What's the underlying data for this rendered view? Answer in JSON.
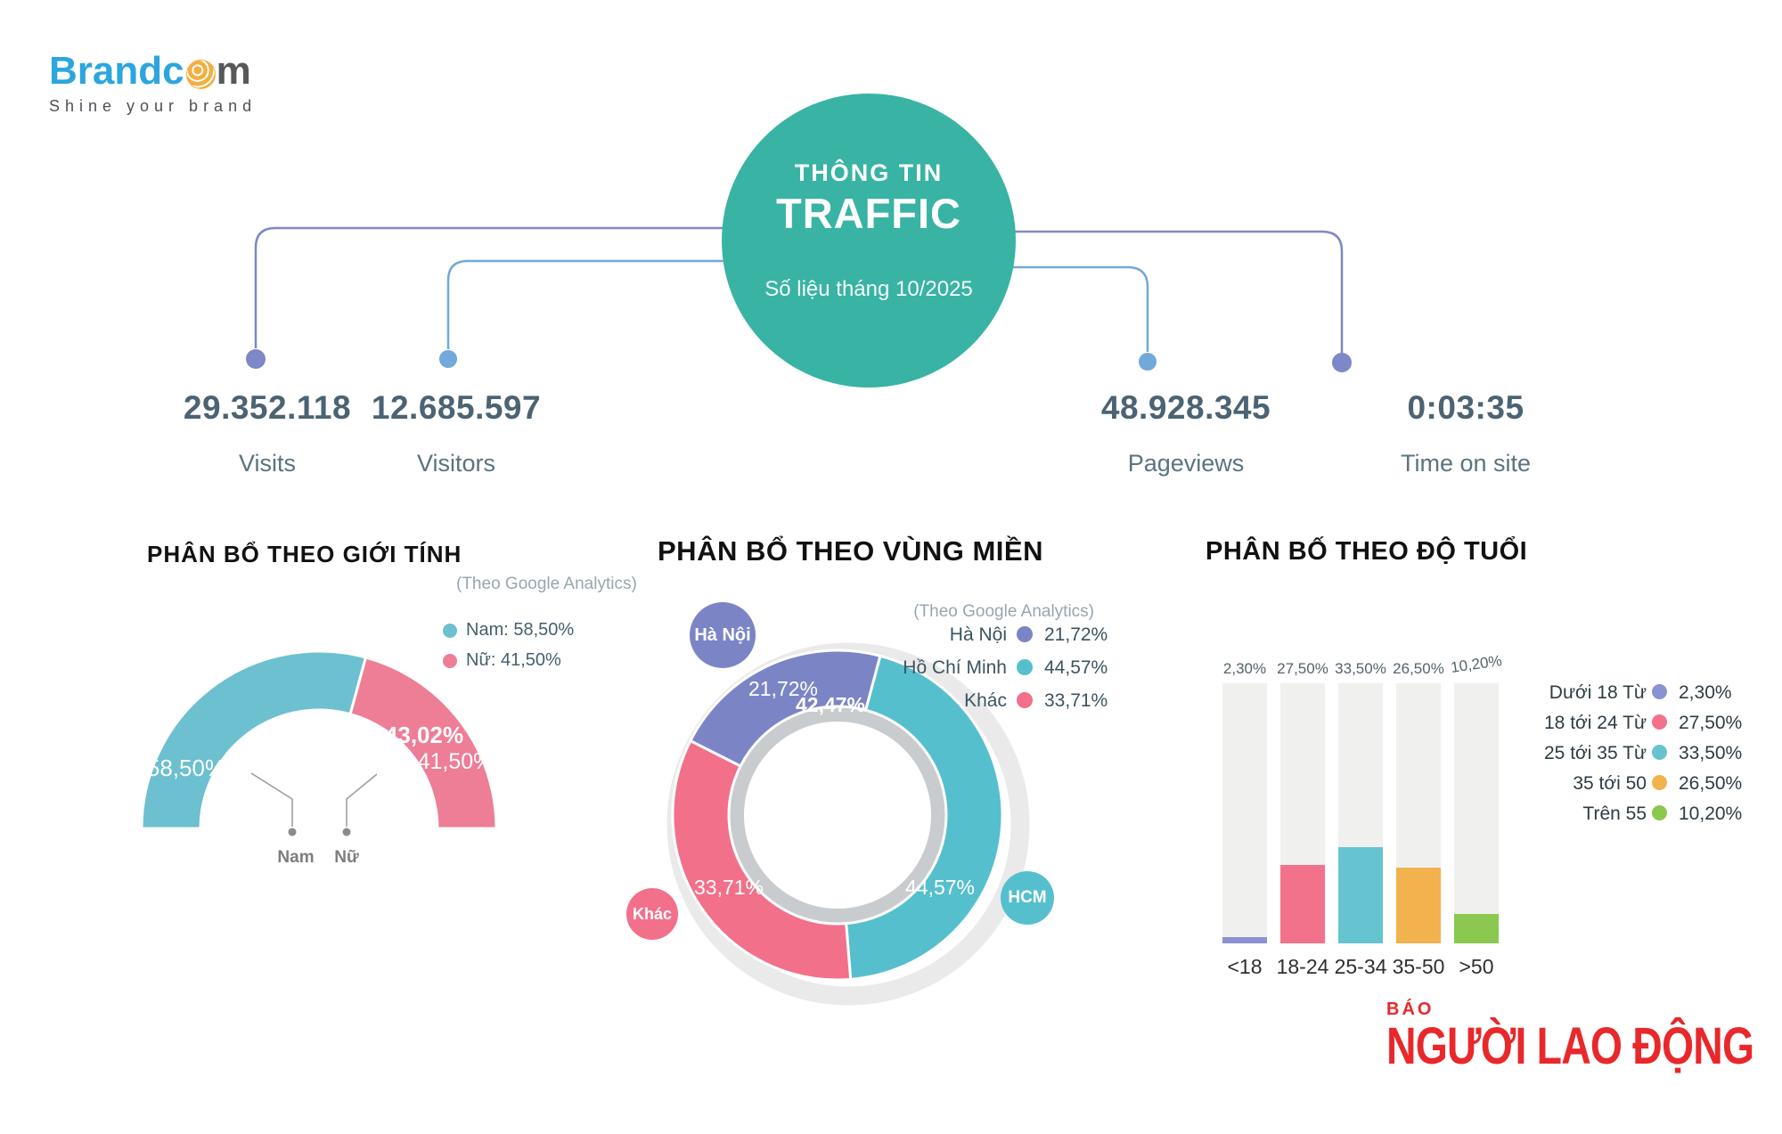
{
  "brand": {
    "text_before_ball": "Brandc",
    "text_after_ball": "m",
    "tagline": "Shine your brand"
  },
  "hero": {
    "line1": "THÔNG TIN",
    "line2": "TRAFFIC",
    "subtitle": "Số liệu tháng 10/2025"
  },
  "stats": [
    {
      "value": "29.352.118",
      "label": "Visits"
    },
    {
      "value": "12.685.597",
      "label": "Visitors"
    },
    {
      "value": "48.928.345",
      "label": "Pageviews"
    },
    {
      "value": "0:03:35",
      "label": "Time on site"
    }
  ],
  "colors": {
    "hero_teal": "#39b3a4",
    "connector_purple": "#7e88c8",
    "connector_blue": "#72a8da",
    "stat_text": "#4b6372",
    "newspaper_red": "#e8282b"
  },
  "chart_data": [
    {
      "type": "pie",
      "subtype": "half-donut-gauge",
      "title": "PHÂN BỔ THEO GIỚI TÍNH",
      "source_note": "(Theo Google Analytics)",
      "segments": [
        {
          "name": "Nam",
          "value": 58.5,
          "display": "58,50%",
          "color": "#6cc0cf"
        },
        {
          "name": "Nữ",
          "value": 41.5,
          "display": "41,50%",
          "secondary_display": "43,02%",
          "color": "#ee7e95"
        }
      ],
      "legend": [
        {
          "label": "Nam: 58,50%",
          "color": "#6cc0cf"
        },
        {
          "label": "Nữ: 41,50%",
          "color": "#ee7e95"
        }
      ],
      "axis_labels": [
        "Nam",
        "Nữ"
      ]
    },
    {
      "type": "pie",
      "subtype": "donut",
      "title": "PHÂN BỔ THEO VÙNG MIỀN",
      "source_note": "(Theo Google Analytics)",
      "segments": [
        {
          "name": "Hồ Chí Minh",
          "value": 44.57,
          "display": "44,57%",
          "color": "#56bfcd",
          "badge": "HCM"
        },
        {
          "name": "Khác",
          "value": 33.71,
          "display": "33,71%",
          "color": "#f2708a",
          "badge": "Khác"
        },
        {
          "name": "Hà Nội",
          "value": 21.72,
          "display": "21,72%",
          "secondary_display": "42,47%",
          "color": "#7b85c6",
          "badge": "Hà Nội"
        }
      ],
      "legend": [
        {
          "label": "Hà Nội",
          "value": "21,72%",
          "color": "#7b85c6"
        },
        {
          "label": "Hồ Chí Minh",
          "value": "44,57%",
          "color": "#56bfcd"
        },
        {
          "label": "Khác",
          "value": "33,71%",
          "color": "#f2708a"
        }
      ]
    },
    {
      "type": "bar",
      "title": "PHÂN BỐ THEO ĐỘ TUỔI",
      "categories": [
        "<18",
        "18-24",
        "25-34",
        "35-50",
        ">50"
      ],
      "values": [
        2.3,
        27.5,
        33.5,
        26.5,
        10.2
      ],
      "value_labels": [
        "2,30%",
        "27,50%",
        "33,50%",
        "26,50%",
        "10,20%"
      ],
      "colors": [
        "#8a92d4",
        "#f3728b",
        "#66c3d0",
        "#f2b24d",
        "#8bc84f"
      ],
      "ylim": [
        0,
        100
      ],
      "legend": [
        {
          "label": "Dưới 18 Từ",
          "value": "2,30%",
          "color": "#8a92d4"
        },
        {
          "label": "18 tới 24 Từ",
          "value": "27,50%",
          "color": "#f3728b"
        },
        {
          "label": "25 tới 35 Từ",
          "value": "33,50%",
          "color": "#66c3d0"
        },
        {
          "label": "35 tới 50",
          "value": "26,50%",
          "color": "#f2b24d"
        },
        {
          "label": "Trên 55",
          "value": "10,20%",
          "color": "#8bc84f"
        }
      ]
    }
  ],
  "footer": {
    "small": "BÁO",
    "large": "NGƯỜI LAO ĐỘNG"
  }
}
